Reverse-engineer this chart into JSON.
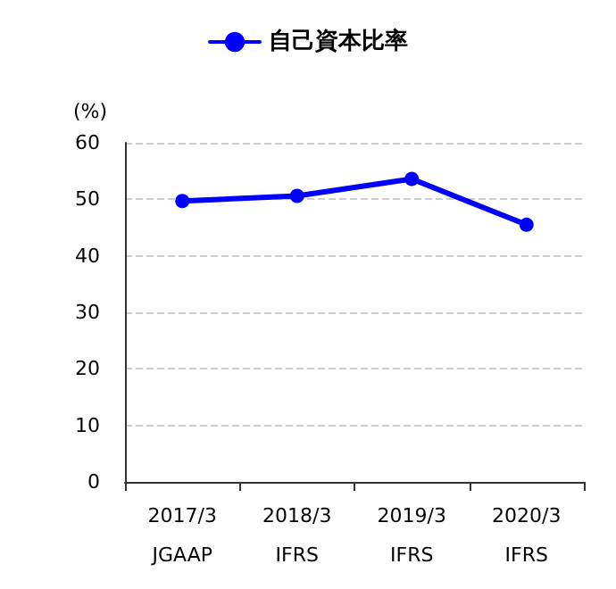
{
  "chart_data": {
    "type": "line",
    "ylabel": "(%)",
    "categories": [
      "2017/3\nJGAAP",
      "2018/3\nIFRS",
      "2019/3\nIFRS",
      "2020/3\nIFRS"
    ],
    "series": [
      {
        "name": "自己資本比率",
        "color": "#0000ff",
        "values": [
          49.7,
          50.6,
          53.6,
          45.5
        ]
      }
    ],
    "ylim": [
      0,
      60
    ],
    "yticks": [
      0,
      10,
      20,
      30,
      40,
      50,
      60
    ],
    "grid": "y",
    "legend": "top",
    "marker": "circle",
    "line_style": "solid"
  }
}
